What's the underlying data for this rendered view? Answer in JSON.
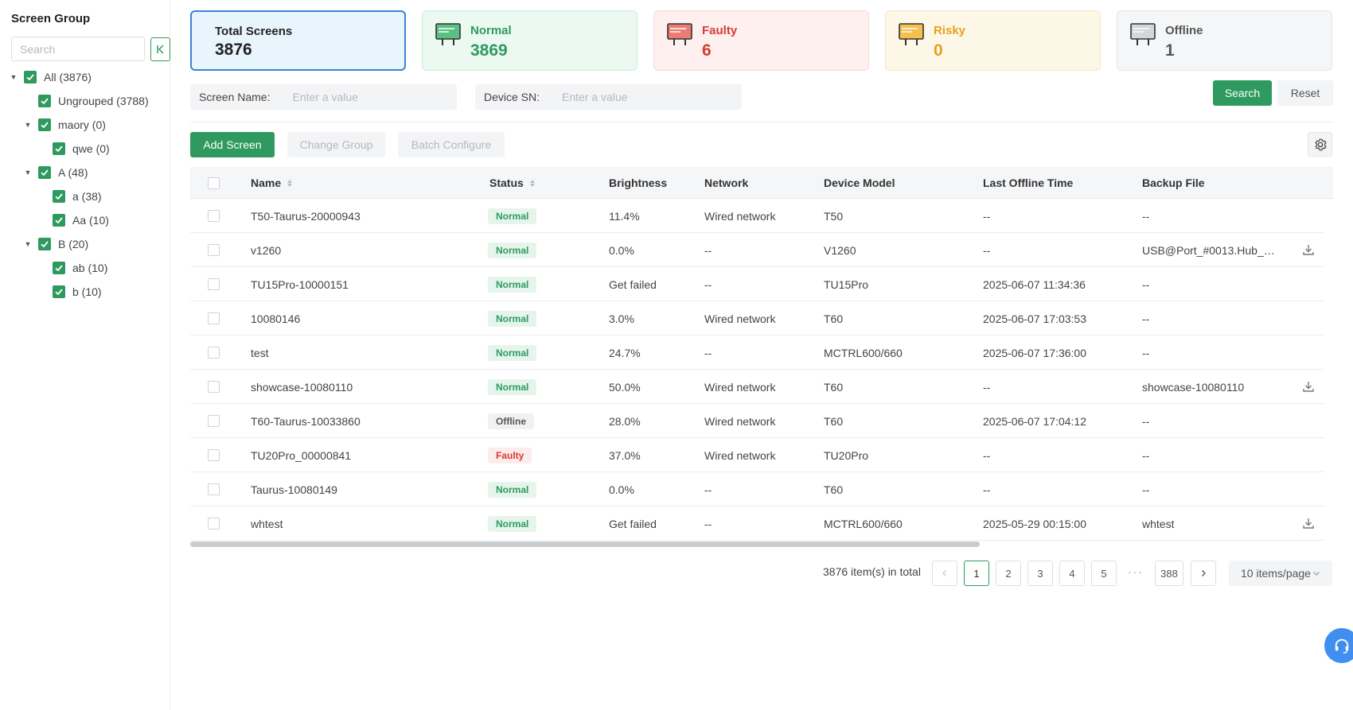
{
  "sidebar": {
    "title": "Screen Group",
    "search_placeholder": "Search",
    "tree": [
      {
        "label": "All (3876)"
      },
      {
        "label": "Ungrouped (3788)"
      },
      {
        "label": "maory (0)"
      },
      {
        "label": "qwe (0)"
      },
      {
        "label": "A (48)"
      },
      {
        "label": "a (38)"
      },
      {
        "label": "Aa (10)"
      },
      {
        "label": "B (20)"
      },
      {
        "label": "ab (10)"
      },
      {
        "label": "b (10)"
      }
    ]
  },
  "stats": {
    "total": {
      "label": "Total Screens",
      "value": "3876"
    },
    "normal": {
      "label": "Normal",
      "value": "3869",
      "color": "#2e9a5f"
    },
    "faulty": {
      "label": "Faulty",
      "value": "6",
      "color": "#d63b33"
    },
    "risky": {
      "label": "Risky",
      "value": "0",
      "color": "#e6a11b"
    },
    "offline": {
      "label": "Offline",
      "value": "1",
      "color": "#555555"
    }
  },
  "filters": {
    "screen_name_label": "Screen Name:",
    "screen_name_placeholder": "Enter a value",
    "device_sn_label": "Device SN:",
    "device_sn_placeholder": "Enter a value",
    "search_label": "Search",
    "reset_label": "Reset"
  },
  "toolbar": {
    "add_label": "Add Screen",
    "change_group_label": "Change Group",
    "batch_configure_label": "Batch Configure"
  },
  "table": {
    "columns": [
      "Name",
      "Status",
      "Brightness",
      "Network",
      "Device Model",
      "Last Offline Time",
      "Backup File"
    ],
    "rows": [
      {
        "name": "T50-Taurus-20000943",
        "status": "Normal",
        "brightness": "11.4%",
        "network": "Wired network",
        "model": "T50",
        "last_offline": "--",
        "backup": "--"
      },
      {
        "name": "v1260",
        "status": "Normal",
        "brightness": "0.0%",
        "network": "--",
        "model": "V1260",
        "last_offline": "--",
        "backup": "USB@Port_#0013.Hub_…"
      },
      {
        "name": "TU15Pro-10000151",
        "status": "Normal",
        "brightness": "Get failed",
        "network": "--",
        "model": "TU15Pro",
        "last_offline": "2025-06-07 11:34:36",
        "backup": "--"
      },
      {
        "name": "10080146",
        "status": "Normal",
        "brightness": "3.0%",
        "network": "Wired network",
        "model": "T60",
        "last_offline": "2025-06-07 17:03:53",
        "backup": "--"
      },
      {
        "name": "test",
        "status": "Normal",
        "brightness": "24.7%",
        "network": "--",
        "model": "MCTRL600/660",
        "last_offline": "2025-06-07 17:36:00",
        "backup": "--"
      },
      {
        "name": "showcase-10080110",
        "status": "Normal",
        "brightness": "50.0%",
        "network": "Wired network",
        "model": "T60",
        "last_offline": "--",
        "backup": "showcase-10080110"
      },
      {
        "name": "T60-Taurus-10033860",
        "status": "Offline",
        "brightness": "28.0%",
        "network": "Wired network",
        "model": "T60",
        "last_offline": "2025-06-07 17:04:12",
        "backup": "--"
      },
      {
        "name": "TU20Pro_00000841",
        "status": "Faulty",
        "brightness": "37.0%",
        "network": "Wired network",
        "model": "TU20Pro",
        "last_offline": "--",
        "backup": "--"
      },
      {
        "name": "Taurus-10080149",
        "status": "Normal",
        "brightness": "0.0%",
        "network": "--",
        "model": "T60",
        "last_offline": "--",
        "backup": "--"
      },
      {
        "name": "whtest",
        "status": "Normal",
        "brightness": "Get failed",
        "network": "--",
        "model": "MCTRL600/660",
        "last_offline": "2025-05-29 00:15:00",
        "backup": "whtest"
      }
    ]
  },
  "pagination": {
    "total_text": "3876 item(s) in total",
    "pages": [
      "1",
      "2",
      "3",
      "4",
      "5"
    ],
    "ellipsis": "···",
    "last_page": "388",
    "page_size": "10 items/page",
    "current": "1"
  }
}
